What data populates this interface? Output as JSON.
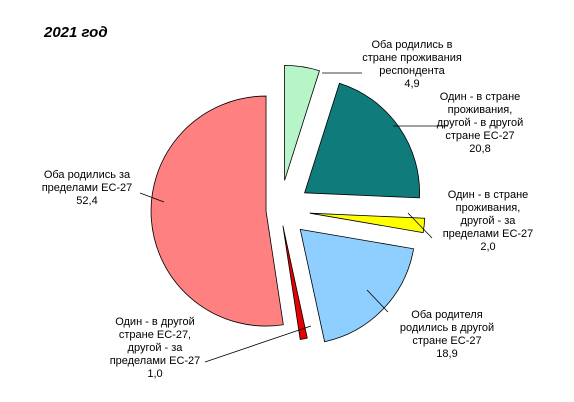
{
  "chart_data": {
    "type": "pie",
    "title": "2021 год",
    "unit": "%",
    "slices": [
      {
        "label": [
          "Оба родились в",
          "стране проживания",
          "респондента"
        ],
        "value": 4.9,
        "value_label": "4,9",
        "color": "#b6f5c8"
      },
      {
        "label": [
          "Один - в стране",
          "проживания,",
          "другой - в другой",
          "стране ЕС-27"
        ],
        "value": 20.8,
        "value_label": "20,8",
        "color": "#0f7b7b"
      },
      {
        "label": [
          "Один - в стране",
          "проживания,",
          "другой - за",
          "пределами ЕС-27"
        ],
        "value": 2.0,
        "value_label": "2,0",
        "color": "#ffff00"
      },
      {
        "label": [
          "Оба родителя",
          "родились в другой",
          "стране ЕС-27"
        ],
        "value": 18.9,
        "value_label": "18,9",
        "color": "#8fcfff"
      },
      {
        "label": [
          "Один - в другой",
          "стране ЕС-27,",
          "другой - за",
          "пределами ЕС-27"
        ],
        "value": 1.0,
        "value_label": "1,0",
        "color": "#e60000"
      },
      {
        "label": [
          "Оба родились за",
          "пределами ЕС-27"
        ],
        "value": 52.4,
        "value_label": "52,4",
        "color": "#ff8080"
      }
    ]
  }
}
